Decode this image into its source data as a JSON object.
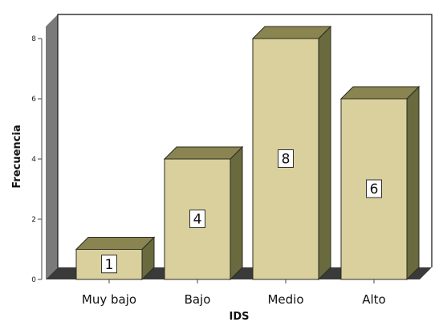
{
  "chart_data": {
    "type": "bar",
    "categories": [
      "Muy bajo",
      "Bajo",
      "Medio",
      "Alto"
    ],
    "values": [
      1,
      4,
      8,
      6
    ],
    "data_labels": [
      "1",
      "4",
      "8",
      "6"
    ],
    "xlabel": "IDS",
    "ylabel": "Frecuencia",
    "ylim": [
      0,
      8
    ],
    "yticks": [
      0,
      2,
      4,
      6,
      8
    ],
    "style": "3d",
    "grid": false,
    "colors": {
      "bar_front": "#d9d09e",
      "bar_top": "#8a8550",
      "bar_side": "#696a3e",
      "bar_edge": "#2b2b20",
      "wall": "#7a7a7a",
      "floor": "#3a3a3a",
      "label_bg": "#ffffff"
    }
  }
}
